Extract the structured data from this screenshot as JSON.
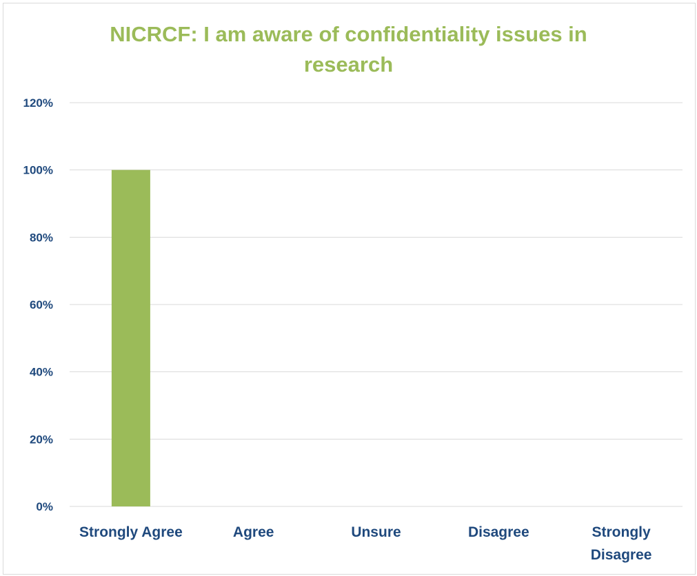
{
  "chart_data": {
    "type": "bar",
    "title_lines": [
      "NICRCF: I am aware of confidentiality issues in",
      "research"
    ],
    "categories": [
      "Strongly Agree",
      "Agree",
      "Unsure",
      "Disagree",
      "Strongly Disagree"
    ],
    "category_lines": [
      [
        "Strongly Agree"
      ],
      [
        "Agree"
      ],
      [
        "Unsure"
      ],
      [
        "Disagree"
      ],
      [
        "Strongly",
        "Disagree"
      ]
    ],
    "values": [
      1.0,
      0,
      0,
      0,
      0
    ],
    "ylim": [
      0,
      1.2
    ],
    "yticks": [
      0,
      0.2,
      0.4,
      0.6,
      0.8,
      1.0,
      1.2
    ],
    "ytick_labels": [
      "0%",
      "20%",
      "40%",
      "60%",
      "80%",
      "100%",
      "120%"
    ],
    "xlabel": "",
    "ylabel": "",
    "grid": true,
    "legend": "none",
    "bar_color": "#9bbb59",
    "title_color": "#9bbb59",
    "label_color": "#1f497d",
    "grid_color": "#d9d9d9"
  }
}
